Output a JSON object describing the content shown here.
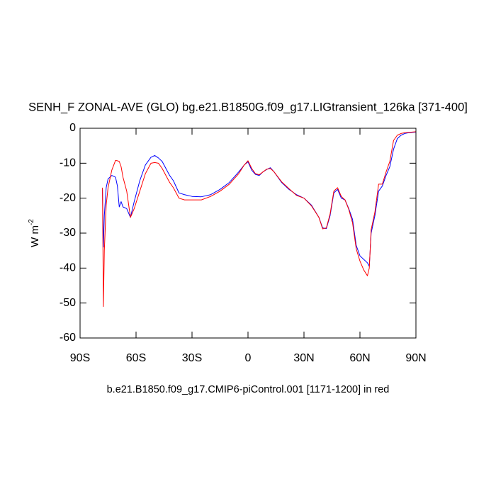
{
  "chart_data": {
    "type": "line",
    "title": "SENH_F ZONAL-AVE (GLO) bg.e21.B1850G.f09_g17.LIGtransient_126ka [371-400]",
    "subtitle": "b.e21.B1850.f09_g17.CMIP6-piControl.001 [1171-1200] in red",
    "y_label": "W m",
    "y_label_sup": "-2",
    "x": [
      -78,
      -77.5,
      -77,
      -76,
      -75,
      -73,
      -71,
      -70,
      -69,
      -68,
      -67,
      -65,
      -63,
      -61,
      -58,
      -55,
      -52,
      -50,
      -48,
      -46,
      -44,
      -42,
      -40,
      -37,
      -34,
      -30,
      -25,
      -20,
      -15,
      -10,
      -5,
      -2,
      0,
      2,
      4,
      6,
      8,
      10,
      12,
      14,
      18,
      22,
      26,
      30,
      34,
      38,
      40,
      42,
      44,
      46,
      48,
      50,
      52,
      54,
      56,
      58,
      60,
      62,
      64,
      65,
      66,
      68,
      70,
      72,
      74,
      76,
      78,
      80,
      82,
      84,
      86,
      88,
      90
    ],
    "series": [
      {
        "color": "#0000ff",
        "values": [
          -17.5,
          -34,
          -25,
          -17,
          -14.5,
          -13.5,
          -14,
          -16.5,
          -22.5,
          -21,
          -22.5,
          -23,
          -25.5,
          -21,
          -15,
          -10.5,
          -8.3,
          -7.8,
          -8.5,
          -9.5,
          -11.5,
          -13.5,
          -15,
          -18.5,
          -19,
          -19.5,
          -19.6,
          -19,
          -17.5,
          -15.5,
          -12.5,
          -10.5,
          -9.6,
          -12,
          -13.2,
          -13.5,
          -12.5,
          -11.8,
          -11.3,
          -12.5,
          -15.5,
          -17.5,
          -19,
          -20,
          -22,
          -25.5,
          -28.5,
          -28.7,
          -25,
          -18.5,
          -17.5,
          -20,
          -20.5,
          -23,
          -26,
          -33.5,
          -36.5,
          -37.5,
          -38.5,
          -39.5,
          -30,
          -25,
          -18,
          -16.5,
          -13.5,
          -11,
          -6,
          -3,
          -2,
          -1.5,
          -1.3,
          -1.2,
          -1.1
        ]
      },
      {
        "color": "#ff0000",
        "values": [
          -17,
          -51,
          -35,
          -22,
          -17,
          -12,
          -9.2,
          -9.3,
          -9.5,
          -11,
          -14,
          -18,
          -25.5,
          -23,
          -18,
          -13,
          -10,
          -9.8,
          -10,
          -11.5,
          -13.5,
          -15.5,
          -17,
          -20,
          -20.5,
          -20.5,
          -20.5,
          -19.5,
          -18,
          -16,
          -13,
          -10.5,
          -9.3,
          -11.5,
          -13,
          -13.3,
          -12.5,
          -11.7,
          -11.5,
          -12.5,
          -15.3,
          -17.3,
          -19.2,
          -20,
          -22.2,
          -25.5,
          -28.8,
          -28.5,
          -24.5,
          -18,
          -17,
          -19.5,
          -20.5,
          -23.2,
          -27,
          -34.5,
          -38,
          -40.5,
          -42.2,
          -40,
          -29,
          -24,
          -16,
          -16,
          -12.5,
          -9.5,
          -3.5,
          -2,
          -1.5,
          -1.3,
          -1.2,
          -1.1,
          -1
        ]
      }
    ],
    "xlim": [
      -90,
      90
    ],
    "xticks": [
      {
        "value": -90,
        "label": "90S"
      },
      {
        "value": -60,
        "label": "60S"
      },
      {
        "value": -30,
        "label": "30S"
      },
      0,
      {
        "value": 30,
        "label": "30N"
      },
      {
        "value": 60,
        "label": "60N"
      },
      {
        "value": 90,
        "label": "90N"
      }
    ],
    "ylim": [
      -60,
      0
    ],
    "yticks": [
      0,
      -10,
      -20,
      -30,
      -40,
      -50,
      -60
    ]
  }
}
